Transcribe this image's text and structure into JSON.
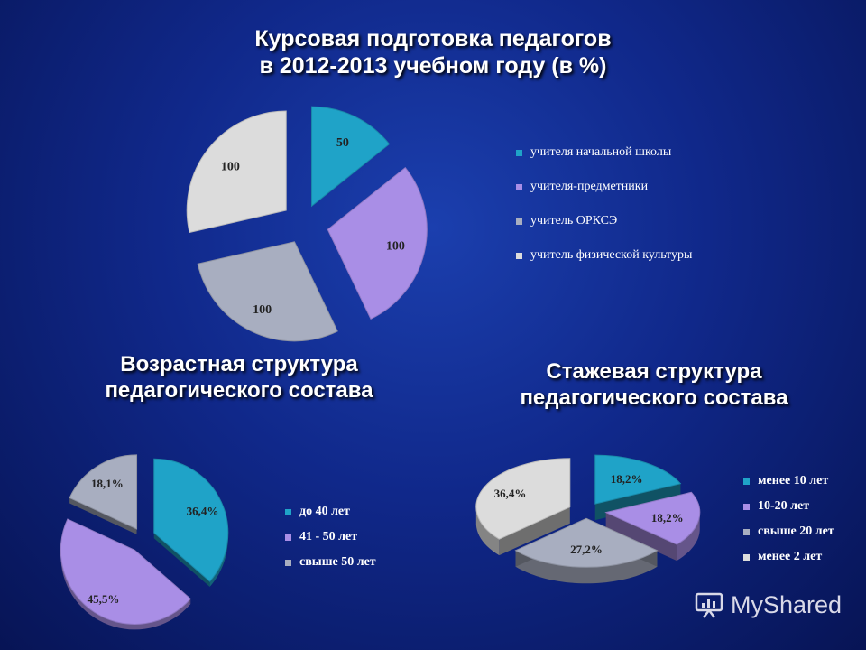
{
  "titles": {
    "main_line1": "Курсовая подготовка педагогов",
    "main_line2": "в 2012-2013 учебном году (в %)",
    "age_line1": "Возрастная структура",
    "age_line2": "педагогического состава",
    "exp_line1": "Стажевая структура",
    "exp_line2": "педагогического состава"
  },
  "chart_data": [
    {
      "type": "pie",
      "categories": [
        "учителя начальной школы",
        "учителя-предметники",
        "учитель ОРКСЭ",
        "учитель физической культуры"
      ],
      "values": [
        50,
        100,
        100,
        100
      ],
      "labels": [
        "50",
        "100",
        "100",
        "100"
      ],
      "colors": [
        "#1fa3c8",
        "#a98ee6",
        "#a8aec0",
        "#dcdcdc"
      ],
      "legend": "right"
    },
    {
      "type": "pie",
      "categories": [
        "до 40 лет",
        "41 - 50 лет",
        "свыше 50 лет"
      ],
      "values": [
        36.4,
        45.5,
        18.1
      ],
      "labels": [
        "36,4%",
        "45,5%",
        "18,1%"
      ],
      "colors": [
        "#1fa3c8",
        "#a98ee6",
        "#a8aec0"
      ],
      "legend": "right"
    },
    {
      "type": "pie",
      "categories": [
        "менее 10 лет",
        "10-20 лет",
        "свыше 20 лет",
        "менее 2 лет"
      ],
      "values": [
        18.2,
        18.2,
        27.2,
        36.4
      ],
      "labels": [
        "18,2%",
        "18,2%",
        "27,2%",
        "36,4%"
      ],
      "colors": [
        "#1fa3c8",
        "#a98ee6",
        "#a8aec0",
        "#dcdcdc"
      ],
      "legend": "right"
    }
  ],
  "watermark": "MyShared",
  "watermark_icon": "presentation-board-icon"
}
